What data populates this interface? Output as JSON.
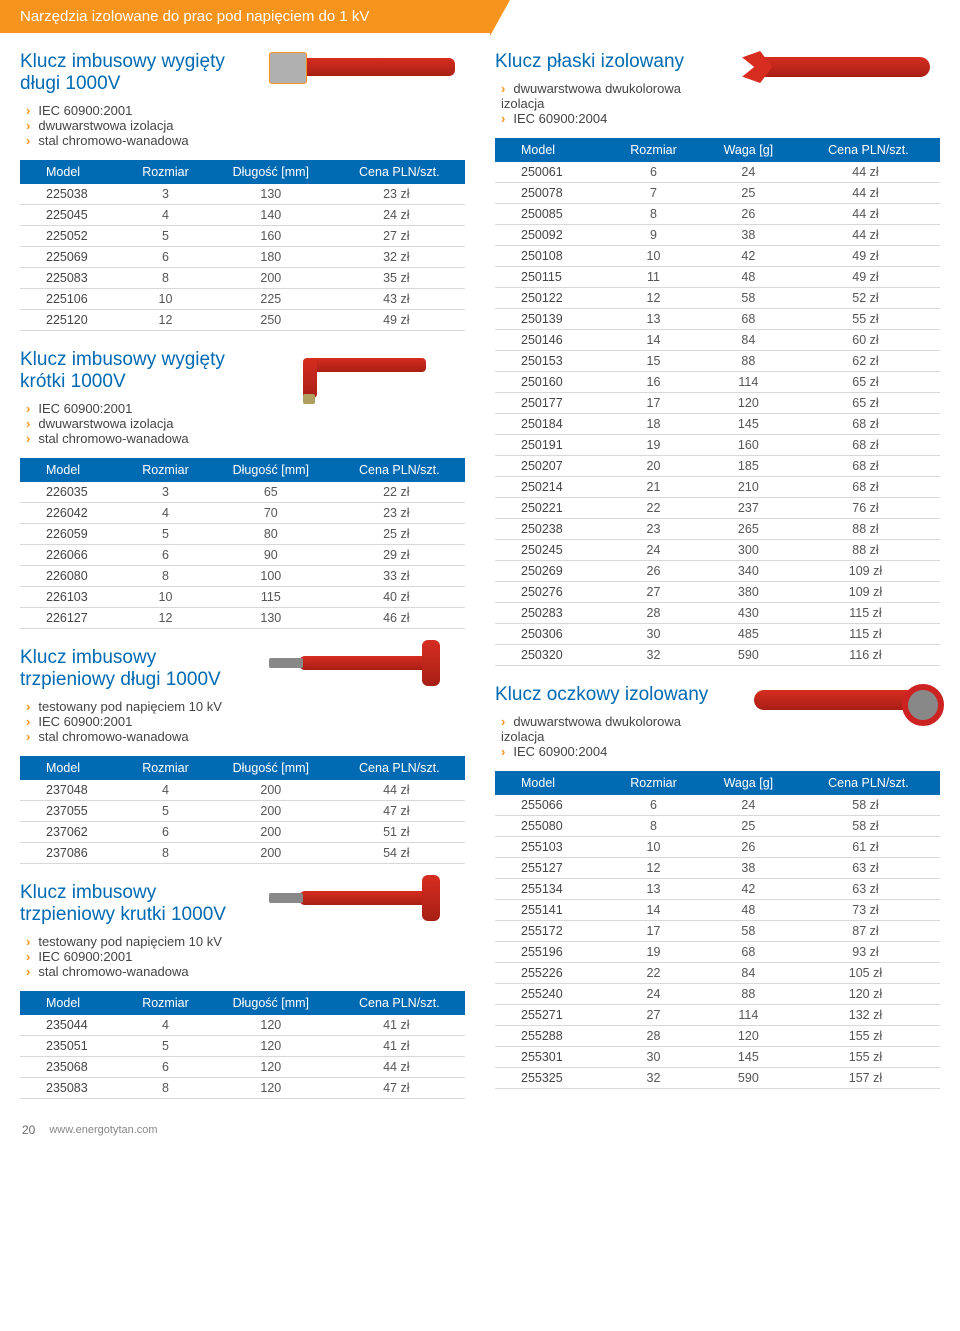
{
  "banner": "Narzędzia izolowane do prac pod napięciem do 1 kV",
  "headers_len": {
    "model": "Model",
    "size": "Rozmiar",
    "len": "Długość [mm]",
    "price": "Cena PLN/szt."
  },
  "headers_wt": {
    "model": "Model",
    "size": "Rozmiar",
    "wt": "Waga [g]",
    "price": "Cena PLN/szt."
  },
  "left": [
    {
      "title": "Klucz imbusowy wygięty długi 1000V",
      "specs": [
        "IEC 60900:2001",
        "dwuwarstwowa izolacja",
        "stal chromowo-wanadowa"
      ],
      "tool": "tool-long",
      "hdr": "len",
      "rows": [
        [
          "225038",
          "3",
          "130",
          "23 zł"
        ],
        [
          "225045",
          "4",
          "140",
          "24 zł"
        ],
        [
          "225052",
          "5",
          "160",
          "27 zł"
        ],
        [
          "225069",
          "6",
          "180",
          "32 zł"
        ],
        [
          "225083",
          "8",
          "200",
          "35 zł"
        ],
        [
          "225106",
          "10",
          "225",
          "43 zł"
        ],
        [
          "225120",
          "12",
          "250",
          "49 zł"
        ]
      ]
    },
    {
      "title": "Klucz imbusowy wygięty krótki 1000V",
      "specs": [
        "IEC 60900:2001",
        "dwuwarstwowa izolacja",
        "stal chromowo-wanadowa"
      ],
      "tool": "tool-L",
      "hdr": "len",
      "rows": [
        [
          "226035",
          "3",
          "65",
          "22 zł"
        ],
        [
          "226042",
          "4",
          "70",
          "23 zł"
        ],
        [
          "226059",
          "5",
          "80",
          "25 zł"
        ],
        [
          "226066",
          "6",
          "90",
          "29 zł"
        ],
        [
          "226080",
          "8",
          "100",
          "33 zł"
        ],
        [
          "226103",
          "10",
          "115",
          "40 zł"
        ],
        [
          "226127",
          "12",
          "130",
          "46 zł"
        ]
      ]
    },
    {
      "title": "Klucz imbusowy trzpieniowy długi 1000V",
      "specs": [
        "testowany pod napięciem 10 kV",
        "IEC 60900:2001",
        "stal chromowo-wanadowa"
      ],
      "tool": "tool-t",
      "hdr": "len",
      "rows": [
        [
          "237048",
          "4",
          "200",
          "44 zł"
        ],
        [
          "237055",
          "5",
          "200",
          "47 zł"
        ],
        [
          "237062",
          "6",
          "200",
          "51 zł"
        ],
        [
          "237086",
          "8",
          "200",
          "54 zł"
        ]
      ]
    },
    {
      "title": "Klucz imbusowy trzpieniowy krutki 1000V",
      "specs": [
        "testowany pod napięciem 10 kV",
        "IEC 60900:2001",
        "stal chromowo-wanadowa"
      ],
      "tool": "tool-t",
      "hdr": "len",
      "rows": [
        [
          "235044",
          "4",
          "120",
          "41 zł"
        ],
        [
          "235051",
          "5",
          "120",
          "41 zł"
        ],
        [
          "235068",
          "6",
          "120",
          "44 zł"
        ],
        [
          "235083",
          "8",
          "120",
          "47 zł"
        ]
      ]
    }
  ],
  "right": [
    {
      "title": "Klucz płaski izolowany",
      "specs": [
        "dwuwarstwowa dwukolorowa izolacja",
        "IEC 60900:2004"
      ],
      "tool": "tool-wrench",
      "hdr": "wt",
      "rows": [
        [
          "250061",
          "6",
          "24",
          "44 zł"
        ],
        [
          "250078",
          "7",
          "25",
          "44 zł"
        ],
        [
          "250085",
          "8",
          "26",
          "44 zł"
        ],
        [
          "250092",
          "9",
          "38",
          "44 zł"
        ],
        [
          "250108",
          "10",
          "42",
          "49 zł"
        ],
        [
          "250115",
          "11",
          "48",
          "49 zł"
        ],
        [
          "250122",
          "12",
          "58",
          "52 zł"
        ],
        [
          "250139",
          "13",
          "68",
          "55 zł"
        ],
        [
          "250146",
          "14",
          "84",
          "60 zł"
        ],
        [
          "250153",
          "15",
          "88",
          "62 zł"
        ],
        [
          "250160",
          "16",
          "114",
          "65 zł"
        ],
        [
          "250177",
          "17",
          "120",
          "65 zł"
        ],
        [
          "250184",
          "18",
          "145",
          "68 zł"
        ],
        [
          "250191",
          "19",
          "160",
          "68 zł"
        ],
        [
          "250207",
          "20",
          "185",
          "68 zł"
        ],
        [
          "250214",
          "21",
          "210",
          "68 zł"
        ],
        [
          "250221",
          "22",
          "237",
          "76 zł"
        ],
        [
          "250238",
          "23",
          "265",
          "88 zł"
        ],
        [
          "250245",
          "24",
          "300",
          "88 zł"
        ],
        [
          "250269",
          "26",
          "340",
          "109 zł"
        ],
        [
          "250276",
          "27",
          "380",
          "109 zł"
        ],
        [
          "250283",
          "28",
          "430",
          "115 zł"
        ],
        [
          "250306",
          "30",
          "485",
          "115 zł"
        ],
        [
          "250320",
          "32",
          "590",
          "116 zł"
        ]
      ]
    },
    {
      "title": "Klucz oczkowy izolowany",
      "specs": [
        "dwuwarstwowa dwukolorowa izolacja",
        "IEC 60900:2004"
      ],
      "tool": "tool-ring",
      "hdr": "wt",
      "rows": [
        [
          "255066",
          "6",
          "24",
          "58 zł"
        ],
        [
          "255080",
          "8",
          "25",
          "58 zł"
        ],
        [
          "255103",
          "10",
          "26",
          "61 zł"
        ],
        [
          "255127",
          "12",
          "38",
          "63 zł"
        ],
        [
          "255134",
          "13",
          "42",
          "63 zł"
        ],
        [
          "255141",
          "14",
          "48",
          "73 zł"
        ],
        [
          "255172",
          "17",
          "58",
          "87 zł"
        ],
        [
          "255196",
          "19",
          "68",
          "93 zł"
        ],
        [
          "255226",
          "22",
          "84",
          "105 zł"
        ],
        [
          "255240",
          "24",
          "88",
          "120 zł"
        ],
        [
          "255271",
          "27",
          "114",
          "132 zł"
        ],
        [
          "255288",
          "28",
          "120",
          "155 zł"
        ],
        [
          "255301",
          "30",
          "145",
          "155 zł"
        ],
        [
          "255325",
          "32",
          "590",
          "157 zł"
        ]
      ]
    }
  ],
  "footer": {
    "page": "20",
    "url": "www.energotytan.com"
  }
}
